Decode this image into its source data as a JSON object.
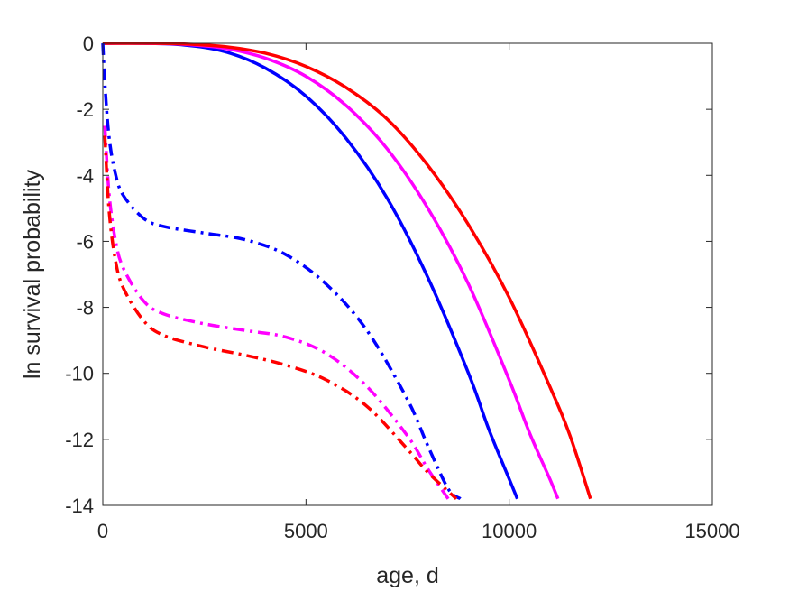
{
  "chart_data": {
    "type": "line",
    "title": "",
    "xlabel": "age, d",
    "ylabel": "ln survival probability",
    "xlim": [
      0,
      15000
    ],
    "ylim": [
      -14,
      0
    ],
    "xticks": [
      0,
      5000,
      10000,
      15000
    ],
    "yticks": [
      0,
      -2,
      -4,
      -6,
      -8,
      -10,
      -12,
      -14
    ],
    "xtick_labels": [
      "0",
      "5000",
      "10000",
      "15000"
    ],
    "ytick_labels": [
      "0",
      "-2",
      "-4",
      "-6",
      "-8",
      "-10",
      "-12",
      "-14"
    ],
    "grid": false,
    "legend": "none",
    "series": [
      {
        "color": "#0000ff",
        "style": "solid",
        "x": [
          0,
          1000,
          2000,
          3000,
          4000,
          5000,
          6000,
          7000,
          8000,
          9000,
          9500,
          10000,
          10200
        ],
        "y": [
          0,
          0,
          -0.05,
          -0.25,
          -0.75,
          -1.6,
          -2.9,
          -4.7,
          -7.1,
          -10.0,
          -11.7,
          -13.2,
          -13.8
        ]
      },
      {
        "color": "#ff00ff",
        "style": "solid",
        "x": [
          0,
          1000,
          2000,
          3000,
          4000,
          5000,
          6000,
          7000,
          8000,
          9000,
          10000,
          10500,
          11000,
          11200
        ],
        "y": [
          0,
          0,
          -0.03,
          -0.15,
          -0.45,
          -1.0,
          -1.9,
          -3.2,
          -5.0,
          -7.3,
          -10.2,
          -11.8,
          -13.2,
          -13.8
        ]
      },
      {
        "color": "#ff0000",
        "style": "solid",
        "x": [
          0,
          1000,
          2000,
          3000,
          4000,
          5000,
          6000,
          7000,
          8000,
          9000,
          10000,
          11000,
          11500,
          12000
        ],
        "y": [
          0,
          0,
          -0.02,
          -0.1,
          -0.3,
          -0.7,
          -1.35,
          -2.3,
          -3.7,
          -5.5,
          -7.7,
          -10.4,
          -11.9,
          -13.8
        ]
      },
      {
        "color": "#0000ff",
        "style": "dashdot",
        "x": [
          0,
          50,
          150,
          300,
          500,
          1000,
          1500,
          2500,
          3500,
          4500,
          5500,
          6500,
          7500,
          8000,
          8500,
          8800
        ],
        "y": [
          0,
          -1.2,
          -2.8,
          -3.9,
          -4.6,
          -5.3,
          -5.55,
          -5.75,
          -5.95,
          -6.4,
          -7.3,
          -8.7,
          -10.8,
          -12.2,
          -13.5,
          -13.8
        ]
      },
      {
        "color": "#ff00ff",
        "style": "dashdot",
        "x": [
          50,
          150,
          300,
          500,
          1000,
          1500,
          2500,
          3500,
          4500,
          5500,
          6500,
          7500,
          8000,
          8500
        ],
        "y": [
          -2.5,
          -4.5,
          -5.9,
          -6.8,
          -7.8,
          -8.2,
          -8.5,
          -8.7,
          -8.9,
          -9.4,
          -10.4,
          -11.9,
          -12.9,
          -13.8
        ]
      },
      {
        "color": "#ff0000",
        "style": "dashdot",
        "x": [
          50,
          150,
          300,
          500,
          1000,
          1500,
          2500,
          3500,
          4500,
          5500,
          6500,
          7500,
          8000,
          8700
        ],
        "y": [
          -2.8,
          -5.0,
          -6.5,
          -7.4,
          -8.4,
          -8.85,
          -9.2,
          -9.45,
          -9.75,
          -10.2,
          -11.0,
          -12.3,
          -13.0,
          -13.8
        ]
      }
    ]
  }
}
